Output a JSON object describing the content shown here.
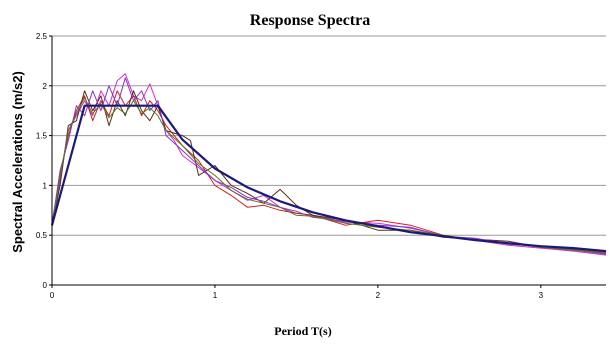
{
  "chart_data": {
    "type": "line",
    "title": "Response Spectra",
    "xlabel": "Period T(s)",
    "ylabel": "Spectral Accelerations (m/s2)",
    "xlim": [
      0,
      3.4
    ],
    "ylim": [
      0,
      2.5
    ],
    "x_ticks": [
      "0",
      "1",
      "2",
      "3"
    ],
    "x_tick_values": [
      0,
      1,
      2,
      3
    ],
    "y_ticks": [
      "0",
      "0.5",
      "1",
      "1.5",
      "2",
      "2.5"
    ],
    "y_tick_values": [
      0,
      0.5,
      1,
      1.5,
      2,
      2.5
    ],
    "grid": true,
    "legend": "none",
    "series": [
      {
        "color": "#1a1a7a",
        "values": [
          [
            0,
            0.6
          ],
          [
            0.1,
            1.2
          ],
          [
            0.2,
            1.8
          ],
          [
            0.65,
            1.8
          ],
          [
            0.8,
            1.46
          ],
          [
            1.0,
            1.17
          ],
          [
            1.2,
            0.98
          ],
          [
            1.4,
            0.84
          ],
          [
            1.6,
            0.73
          ],
          [
            1.8,
            0.65
          ],
          [
            2.0,
            0.59
          ],
          [
            2.2,
            0.53
          ],
          [
            2.4,
            0.49
          ],
          [
            2.6,
            0.45
          ],
          [
            2.8,
            0.42
          ],
          [
            3.0,
            0.39
          ],
          [
            3.2,
            0.37
          ],
          [
            3.4,
            0.34
          ]
        ]
      },
      {
        "color": "#cc33cc",
        "values": [
          [
            0,
            0.6
          ],
          [
            0.05,
            1.05
          ],
          [
            0.1,
            1.55
          ],
          [
            0.15,
            1.7
          ],
          [
            0.2,
            1.85
          ],
          [
            0.25,
            1.7
          ],
          [
            0.3,
            1.95
          ],
          [
            0.35,
            1.8
          ],
          [
            0.4,
            2.05
          ],
          [
            0.45,
            2.12
          ],
          [
            0.5,
            1.9
          ],
          [
            0.55,
            1.85
          ],
          [
            0.6,
            2.02
          ],
          [
            0.65,
            1.8
          ],
          [
            0.7,
            1.55
          ],
          [
            0.75,
            1.45
          ],
          [
            0.8,
            1.3
          ],
          [
            0.9,
            1.18
          ],
          [
            1.0,
            1.05
          ],
          [
            1.1,
            0.95
          ],
          [
            1.2,
            0.85
          ],
          [
            1.3,
            0.9
          ],
          [
            1.4,
            0.78
          ],
          [
            1.5,
            0.72
          ],
          [
            1.6,
            0.7
          ],
          [
            1.8,
            0.63
          ],
          [
            2.0,
            0.62
          ],
          [
            2.2,
            0.57
          ],
          [
            2.4,
            0.5
          ],
          [
            2.6,
            0.45
          ],
          [
            2.8,
            0.4
          ],
          [
            3.0,
            0.37
          ],
          [
            3.2,
            0.34
          ],
          [
            3.4,
            0.3
          ]
        ]
      },
      {
        "color": "#cc2222",
        "values": [
          [
            0,
            0.62
          ],
          [
            0.05,
            1.1
          ],
          [
            0.1,
            1.5
          ],
          [
            0.15,
            1.75
          ],
          [
            0.2,
            1.9
          ],
          [
            0.25,
            1.65
          ],
          [
            0.3,
            1.85
          ],
          [
            0.35,
            1.7
          ],
          [
            0.4,
            1.95
          ],
          [
            0.45,
            1.8
          ],
          [
            0.5,
            1.9
          ],
          [
            0.55,
            1.7
          ],
          [
            0.6,
            1.85
          ],
          [
            0.65,
            1.75
          ],
          [
            0.7,
            1.6
          ],
          [
            0.8,
            1.4
          ],
          [
            0.9,
            1.25
          ],
          [
            1.0,
            1.0
          ],
          [
            1.1,
            0.9
          ],
          [
            1.2,
            0.78
          ],
          [
            1.3,
            0.8
          ],
          [
            1.4,
            0.75
          ],
          [
            1.5,
            0.72
          ],
          [
            1.6,
            0.7
          ],
          [
            1.8,
            0.6
          ],
          [
            2.0,
            0.65
          ],
          [
            2.2,
            0.6
          ],
          [
            2.4,
            0.5
          ],
          [
            2.6,
            0.45
          ],
          [
            2.8,
            0.42
          ],
          [
            3.0,
            0.38
          ],
          [
            3.2,
            0.36
          ],
          [
            3.4,
            0.33
          ]
        ]
      },
      {
        "color": "#5a2a1a",
        "values": [
          [
            0,
            0.6
          ],
          [
            0.05,
            1.0
          ],
          [
            0.1,
            1.6
          ],
          [
            0.15,
            1.65
          ],
          [
            0.2,
            1.95
          ],
          [
            0.25,
            1.75
          ],
          [
            0.3,
            1.9
          ],
          [
            0.35,
            1.6
          ],
          [
            0.4,
            1.85
          ],
          [
            0.45,
            1.7
          ],
          [
            0.5,
            1.95
          ],
          [
            0.55,
            1.75
          ],
          [
            0.6,
            1.65
          ],
          [
            0.65,
            1.8
          ],
          [
            0.7,
            1.55
          ],
          [
            0.8,
            1.5
          ],
          [
            0.85,
            1.45
          ],
          [
            0.9,
            1.1
          ],
          [
            1.0,
            1.2
          ],
          [
            1.1,
            1.0
          ],
          [
            1.2,
            0.92
          ],
          [
            1.3,
            0.82
          ],
          [
            1.4,
            0.96
          ],
          [
            1.5,
            0.8
          ],
          [
            1.6,
            0.7
          ],
          [
            1.8,
            0.65
          ],
          [
            2.0,
            0.55
          ],
          [
            2.2,
            0.55
          ],
          [
            2.4,
            0.48
          ],
          [
            2.6,
            0.46
          ],
          [
            2.8,
            0.44
          ],
          [
            3.0,
            0.38
          ],
          [
            3.2,
            0.35
          ],
          [
            3.4,
            0.32
          ]
        ]
      },
      {
        "color": "#8833cc",
        "values": [
          [
            0,
            0.6
          ],
          [
            0.05,
            1.15
          ],
          [
            0.1,
            1.45
          ],
          [
            0.15,
            1.8
          ],
          [
            0.2,
            1.7
          ],
          [
            0.25,
            1.95
          ],
          [
            0.3,
            1.75
          ],
          [
            0.35,
            2.0
          ],
          [
            0.4,
            1.8
          ],
          [
            0.45,
            2.08
          ],
          [
            0.5,
            1.85
          ],
          [
            0.55,
            1.95
          ],
          [
            0.6,
            1.75
          ],
          [
            0.65,
            1.85
          ],
          [
            0.7,
            1.5
          ],
          [
            0.8,
            1.35
          ],
          [
            0.9,
            1.2
          ],
          [
            1.0,
            1.05
          ],
          [
            1.1,
            0.98
          ],
          [
            1.2,
            0.88
          ],
          [
            1.3,
            0.84
          ],
          [
            1.4,
            0.78
          ],
          [
            1.5,
            0.74
          ],
          [
            1.6,
            0.68
          ],
          [
            1.8,
            0.64
          ],
          [
            2.0,
            0.6
          ],
          [
            2.2,
            0.58
          ],
          [
            2.4,
            0.49
          ],
          [
            2.6,
            0.47
          ],
          [
            2.8,
            0.41
          ],
          [
            3.0,
            0.39
          ],
          [
            3.2,
            0.35
          ],
          [
            3.4,
            0.31
          ]
        ]
      },
      {
        "color": "#557722",
        "values": [
          [
            0,
            0.58
          ],
          [
            0.05,
            1.08
          ],
          [
            0.1,
            1.55
          ],
          [
            0.15,
            1.72
          ],
          [
            0.2,
            1.88
          ],
          [
            0.25,
            1.72
          ],
          [
            0.3,
            1.82
          ],
          [
            0.35,
            1.68
          ],
          [
            0.4,
            1.78
          ],
          [
            0.45,
            1.72
          ],
          [
            0.5,
            1.85
          ],
          [
            0.55,
            1.72
          ],
          [
            0.6,
            1.78
          ],
          [
            0.65,
            1.7
          ],
          [
            0.7,
            1.55
          ],
          [
            0.8,
            1.4
          ],
          [
            0.9,
            1.22
          ],
          [
            1.0,
            1.1
          ],
          [
            1.1,
            0.95
          ],
          [
            1.2,
            0.86
          ],
          [
            1.3,
            0.82
          ],
          [
            1.4,
            0.78
          ],
          [
            1.5,
            0.7
          ],
          [
            1.6,
            0.69
          ],
          [
            1.8,
            0.62
          ],
          [
            2.0,
            0.58
          ],
          [
            2.2,
            0.55
          ],
          [
            2.4,
            0.5
          ],
          [
            2.6,
            0.45
          ],
          [
            2.8,
            0.42
          ],
          [
            3.0,
            0.38
          ],
          [
            3.2,
            0.35
          ],
          [
            3.4,
            0.32
          ]
        ]
      }
    ]
  }
}
